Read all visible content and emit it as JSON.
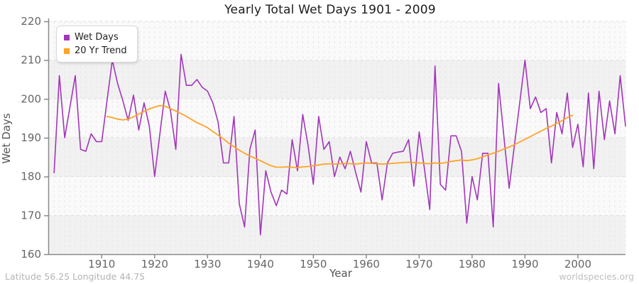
{
  "title": "Yearly Total Wet Days 1901 - 2009",
  "legend": [
    {
      "label": "Wet Days",
      "color": "#A235BA"
    },
    {
      "label": "20 Yr Trend",
      "color": "#FFA324"
    }
  ],
  "footer": {
    "left": "Latitude 56.25 Longitude 44.75",
    "right": "worldspecies.org"
  },
  "chart_data": {
    "type": "line",
    "title": "Yearly Total Wet Days 1901 - 2009",
    "xlabel": "Year",
    "ylabel": "Wet Days",
    "ylim": [
      160,
      220
    ],
    "xlim": [
      1899.9,
      2009.0
    ],
    "y_ticks": [
      160,
      170,
      180,
      190,
      200,
      210,
      220
    ],
    "x_ticks": [
      1910,
      1920,
      1930,
      1940,
      1950,
      1960,
      1970,
      1980,
      1990,
      2000
    ],
    "grid": "horizontal dashed decade lines, vertical dashed yearly lines, alternating gray/white 10-unit bands",
    "legend_position": "top-left",
    "band_colors": {
      "light": "#fafafa",
      "dark": "#f1f1f1"
    },
    "axis_color": "#8a8a8a",
    "tick_label_color": "#666666",
    "series": [
      {
        "name": "Wet Days",
        "color": "#A235BA",
        "x_start": 1901,
        "x_step": 1,
        "values": [
          181,
          206,
          190,
          198,
          206,
          187,
          186.5,
          191,
          189,
          189,
          199.5,
          210,
          204,
          199.5,
          194.5,
          201,
          192,
          199,
          193,
          180,
          191,
          202,
          197,
          187,
          211.5,
          203.5,
          203.5,
          205,
          203,
          202,
          199,
          194,
          183.5,
          183.5,
          195.5,
          173,
          167,
          187,
          192,
          165,
          181.5,
          176,
          172.5,
          176.5,
          175.5,
          189.5,
          181.5,
          196,
          188,
          178,
          195.5,
          187,
          189,
          180,
          185,
          182,
          186.5,
          181,
          176,
          189,
          183.5,
          183.5,
          174,
          183.5,
          186,
          186.3,
          186.5,
          189.5,
          177.5,
          191.5,
          182,
          171.5,
          208.5,
          178,
          176.5,
          190.5,
          190.5,
          186.5,
          168,
          180,
          174,
          186,
          186,
          167,
          204,
          190.5,
          177,
          188,
          199,
          210,
          197.5,
          200.5,
          196.5,
          197.5,
          183.5,
          196.5,
          191,
          201.5,
          187.5,
          193.5,
          182.5,
          201.5,
          182,
          202,
          189.5,
          199.5,
          191,
          206,
          193
        ]
      },
      {
        "name": "20 Yr Trend",
        "color": "#FFA324",
        "x_start": 1911,
        "x_step": 1,
        "values": [
          195.5,
          195.2,
          194.8,
          194.6,
          194.8,
          195.4,
          196.1,
          196.8,
          197.4,
          197.9,
          198.3,
          198.1,
          197.5,
          196.9,
          196.2,
          195.5,
          194.7,
          193.9,
          193.3,
          192.6,
          191.6,
          190.7,
          189.7,
          188.6,
          187.7,
          186.8,
          186.0,
          185.3,
          184.7,
          184.1,
          183.4,
          182.8,
          182.4,
          182.4,
          182.5,
          182.4,
          182.3,
          182.5,
          182.6,
          182.8,
          183.0,
          183.2,
          183.3,
          183.2,
          183.3,
          183.4,
          183.3,
          183.2,
          183.4,
          183.5,
          183.4,
          183.3,
          183.2,
          183.3,
          183.4,
          183.5,
          183.6,
          183.7,
          183.6,
          183.5,
          183.4,
          183.3,
          183.5,
          183.4,
          183.6,
          183.9,
          184.1,
          184.3,
          184.1,
          184.3,
          184.6,
          185.1,
          185.6,
          186.0,
          186.5,
          187.1,
          187.6,
          188.2,
          188.9,
          189.6,
          190.3,
          191.0,
          191.7,
          192.4,
          193.0,
          193.7,
          194.4,
          195.2,
          195.8
        ]
      }
    ]
  }
}
